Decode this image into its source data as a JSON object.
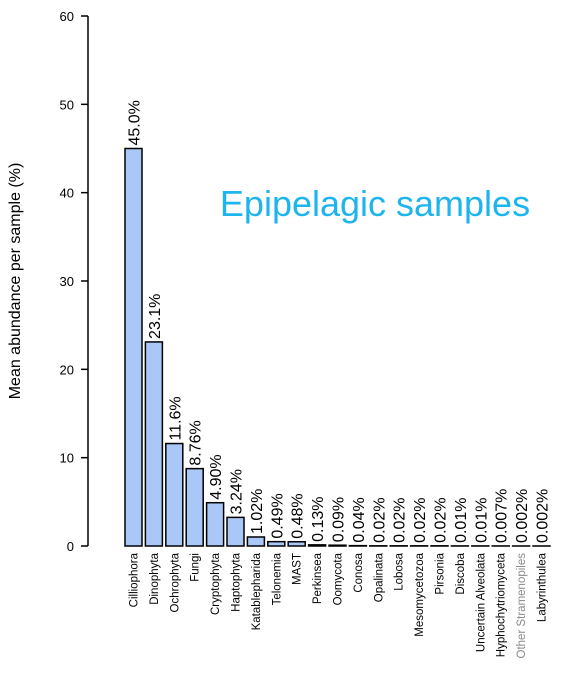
{
  "chart_data": {
    "type": "bar",
    "y_label": "Mean abundance per sample (%)",
    "annotation": "Epipelagic samples",
    "annotation_color": "#1eb4ee",
    "categories": [
      "Cilliophora",
      "Dinophyta",
      "Ochrophyta",
      "Fungi",
      "Cryptophyta",
      "Haptophyta",
      "Katablepharida",
      "Telonemia",
      "MAST",
      "Perkinsea",
      "Oomycota",
      "Conosa",
      "Opalinata",
      "Lobosa",
      "Mesomycetozoa",
      "Pirsonia",
      "Discoba",
      "Uncertain Alveolata",
      "Hyphochytriomyceta",
      "Other Stramenopiles",
      "Labyrinthulea"
    ],
    "category_label_colors": [
      "#000000",
      "#000000",
      "#000000",
      "#000000",
      "#000000",
      "#000000",
      "#000000",
      "#000000",
      "#000000",
      "#000000",
      "#000000",
      "#000000",
      "#000000",
      "#000000",
      "#000000",
      "#000000",
      "#000000",
      "#000000",
      "#000000",
      "#8a8a8a",
      "#000000"
    ],
    "values": [
      45.0,
      23.1,
      11.6,
      8.76,
      4.9,
      3.24,
      1.02,
      0.49,
      0.48,
      0.13,
      0.09,
      0.04,
      0.02,
      0.02,
      0.02,
      0.02,
      0.01,
      0.01,
      0.007,
      0.002,
      0.002
    ],
    "value_labels": [
      "45.0%",
      "23.1%",
      "11.6%",
      "8.76%",
      "4.90%",
      "3.24%",
      "1.02%",
      "0.49%",
      "0.48%",
      "0.13%",
      "0.09%",
      "0.04%",
      "0.02%",
      "0.02%",
      "0.02%",
      "0.02%",
      "0.01%",
      "0.01%",
      "0.007%",
      "0.002%",
      "0.002%"
    ],
    "color": "#a9c8f7",
    "ylim": [
      0,
      60
    ],
    "yticks": [
      0,
      10,
      20,
      30,
      40,
      50,
      60
    ],
    "grid": false
  }
}
